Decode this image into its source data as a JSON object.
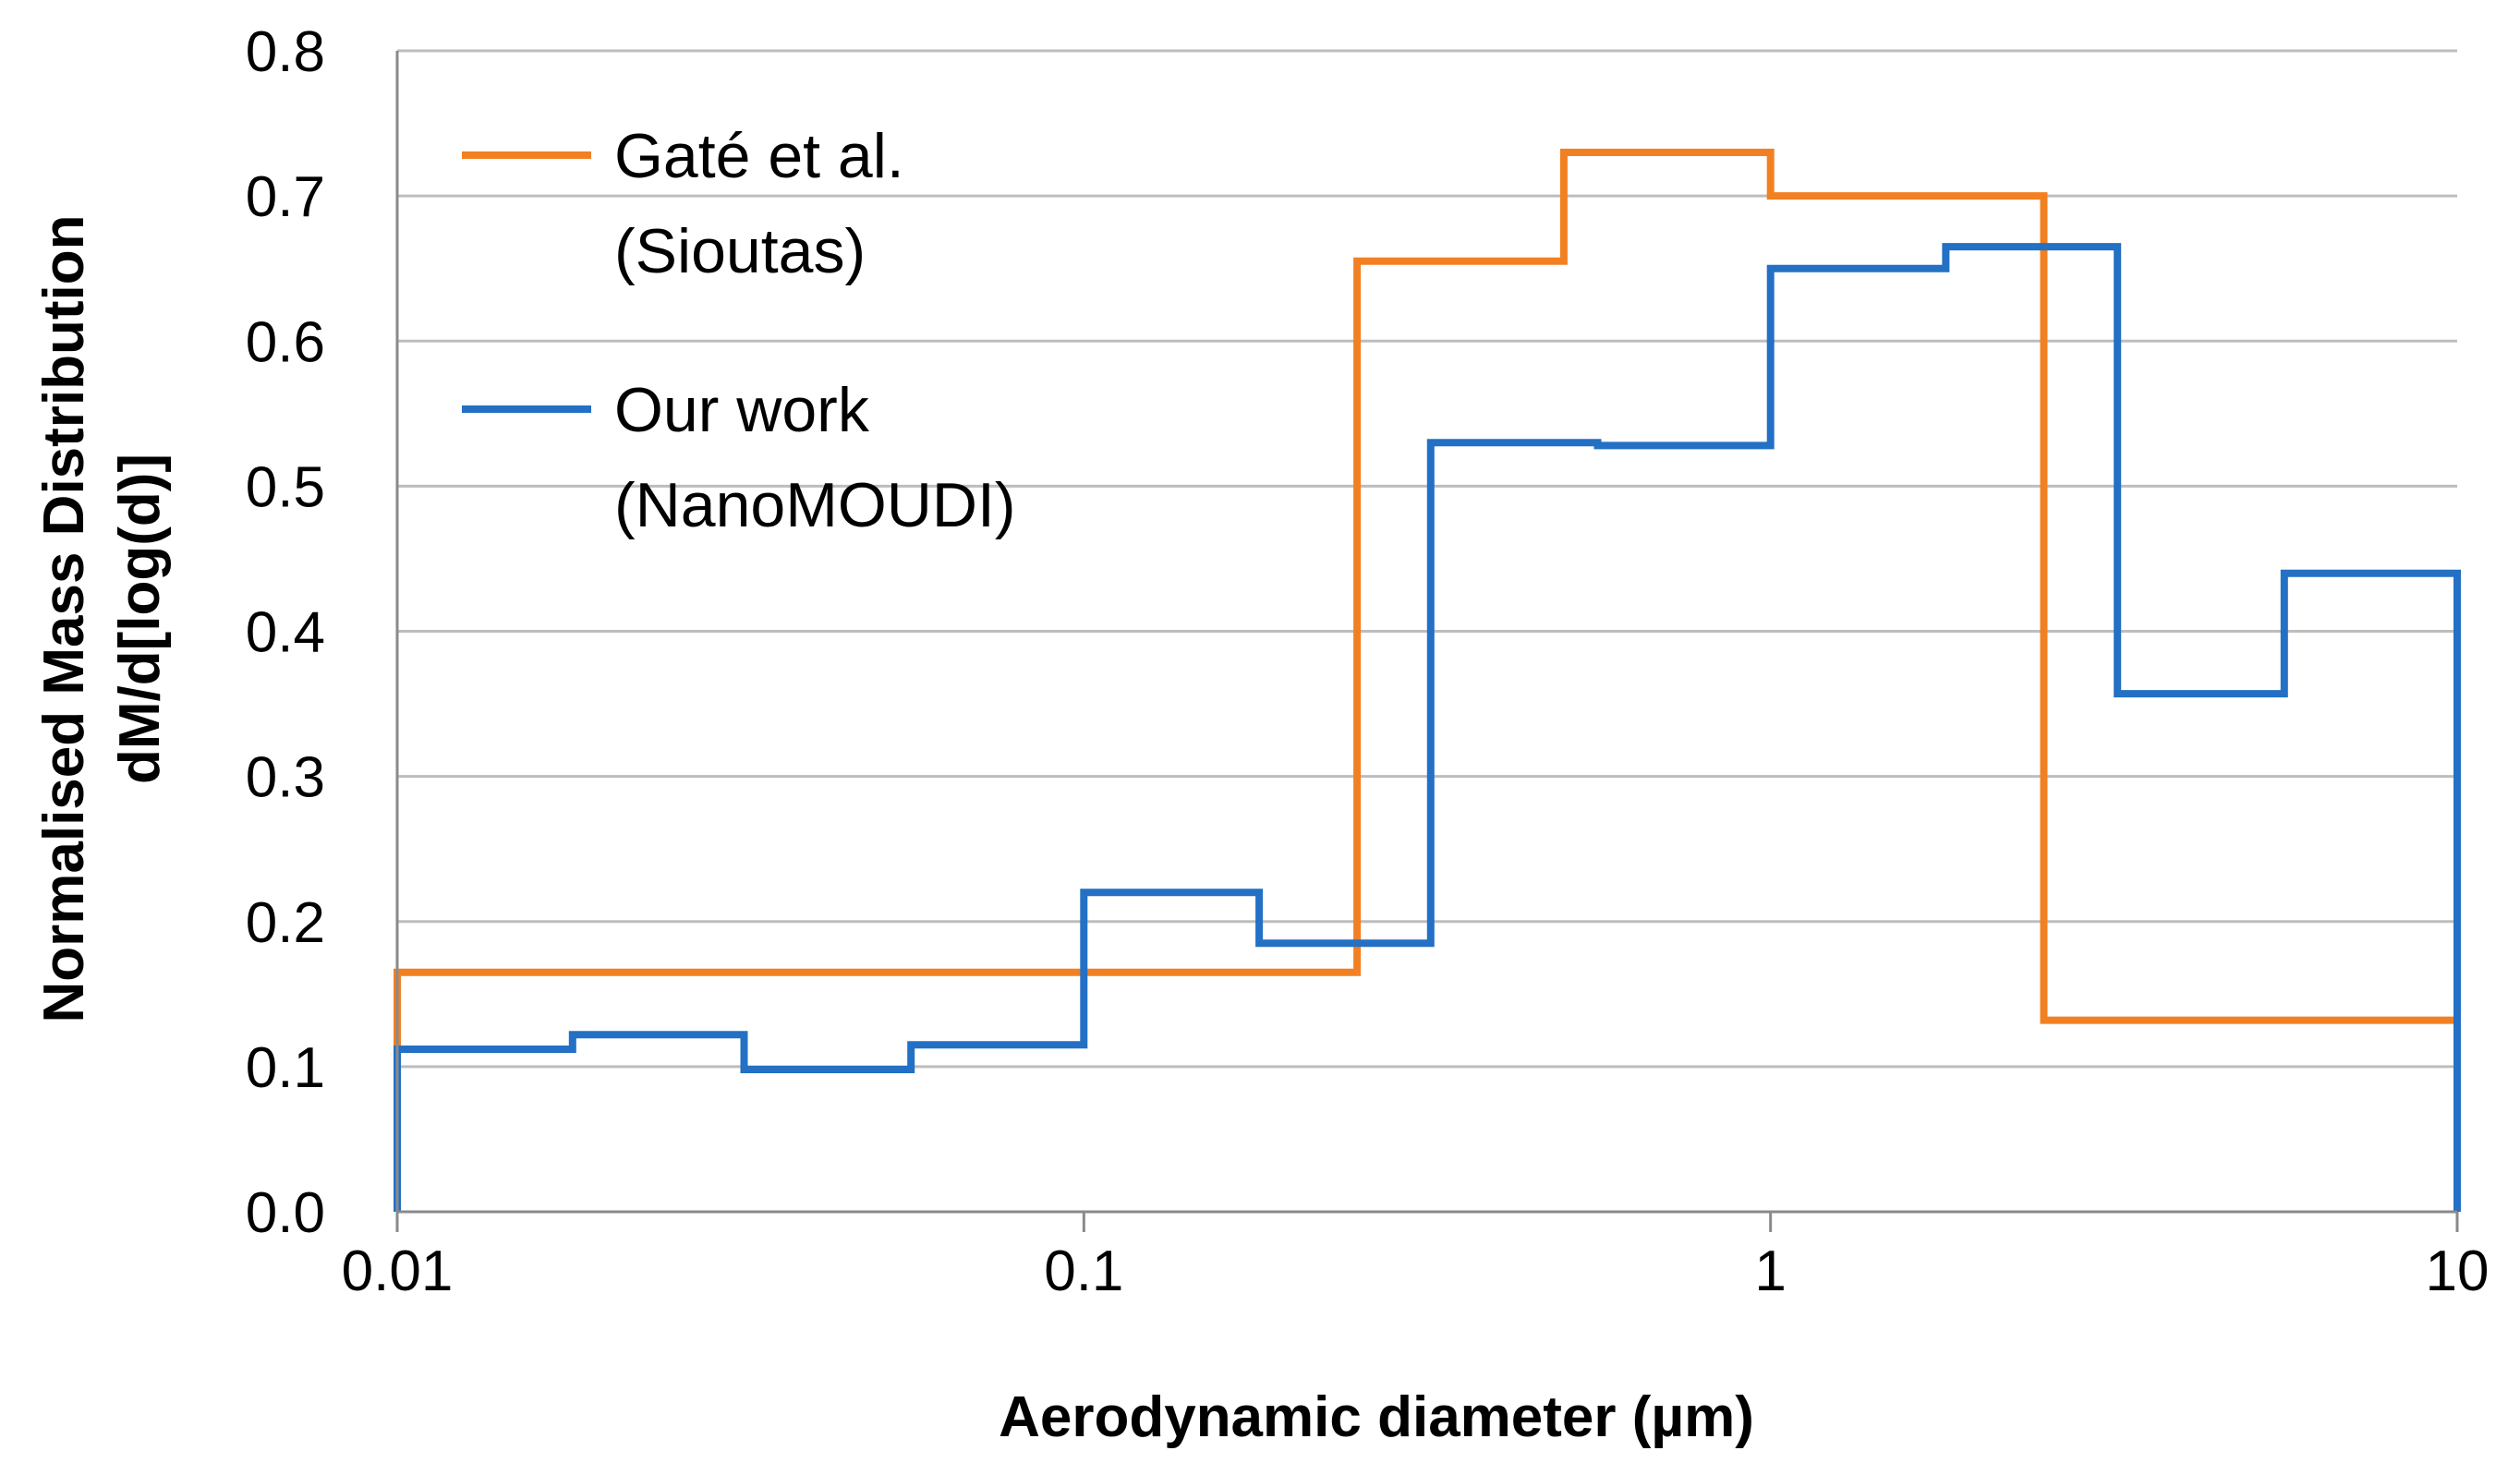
{
  "chart_data": {
    "type": "line",
    "step": true,
    "xscale": "log",
    "xlim": [
      0.01,
      10
    ],
    "ylim": [
      0.0,
      0.8
    ],
    "grid": true,
    "legend_position": "top-left",
    "xlabel": "Aerodynamic diameter (µm)",
    "ylabel_lines": [
      "Normalised Mass Distribution",
      "dM/d[log(d)]"
    ],
    "x_tick_labels": [
      {
        "value": 0.01,
        "label": "0.01"
      },
      {
        "value": 0.1,
        "label": "0.1"
      },
      {
        "value": 1,
        "label": "1"
      },
      {
        "value": 10,
        "label": "10"
      }
    ],
    "y_tick_labels": [
      {
        "value": 0.0,
        "label": "0.0"
      },
      {
        "value": 0.1,
        "label": "0.1"
      },
      {
        "value": 0.2,
        "label": "0.2"
      },
      {
        "value": 0.3,
        "label": "0.3"
      },
      {
        "value": 0.4,
        "label": "0.4"
      },
      {
        "value": 0.5,
        "label": "0.5"
      },
      {
        "value": 0.6,
        "label": "0.6"
      },
      {
        "value": 0.7,
        "label": "0.7"
      },
      {
        "value": 0.8,
        "label": "0.8"
      }
    ],
    "series": [
      {
        "name_lines": [
          "Gaté et al.",
          "(Sioutas)"
        ],
        "color": "#F28022",
        "points": [
          [
            0.01,
            0.0
          ],
          [
            0.01,
            0.165
          ],
          [
            0.25,
            0.165
          ],
          [
            0.25,
            0.655
          ],
          [
            0.5,
            0.655
          ],
          [
            0.5,
            0.73
          ],
          [
            1.0,
            0.73
          ],
          [
            1.0,
            0.7
          ],
          [
            2.5,
            0.7
          ],
          [
            2.5,
            0.132
          ],
          [
            10,
            0.132
          ]
        ]
      },
      {
        "name_lines": [
          "Our work",
          "(NanoMOUDI)"
        ],
        "color": "#2370C4",
        "points": [
          [
            0.01,
            0.0
          ],
          [
            0.01,
            0.112
          ],
          [
            0.018,
            0.112
          ],
          [
            0.018,
            0.122
          ],
          [
            0.032,
            0.122
          ],
          [
            0.032,
            0.098
          ],
          [
            0.056,
            0.098
          ],
          [
            0.056,
            0.115
          ],
          [
            0.1,
            0.115
          ],
          [
            0.1,
            0.22
          ],
          [
            0.18,
            0.22
          ],
          [
            0.18,
            0.185
          ],
          [
            0.32,
            0.185
          ],
          [
            0.32,
            0.53
          ],
          [
            0.56,
            0.53
          ],
          [
            0.56,
            0.528
          ],
          [
            1.0,
            0.528
          ],
          [
            1.0,
            0.65
          ],
          [
            1.8,
            0.65
          ],
          [
            1.8,
            0.665
          ],
          [
            3.2,
            0.665
          ],
          [
            3.2,
            0.357
          ],
          [
            5.6,
            0.357
          ],
          [
            5.6,
            0.44
          ],
          [
            10,
            0.44
          ],
          [
            10,
            0.0
          ]
        ]
      }
    ]
  }
}
